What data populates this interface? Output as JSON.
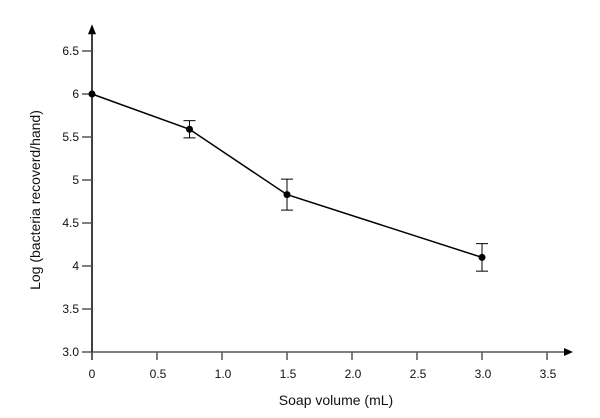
{
  "chart_data": {
    "type": "line",
    "title": "",
    "xlabel": "Soap volume (mL)",
    "ylabel": "Log (bacteria recoverd/hand)",
    "xlim": [
      0,
      3.7
    ],
    "ylim": [
      3.0,
      6.8
    ],
    "x_ticks": [
      0,
      0.5,
      1.0,
      1.5,
      2.0,
      2.5,
      3.0,
      3.5
    ],
    "x_tick_labels": [
      "0",
      "0.5",
      "1.0",
      "1.5",
      "2.0",
      "2.5",
      "3.0",
      "3.5"
    ],
    "y_ticks": [
      3.0,
      3.5,
      4,
      4.5,
      5,
      5.5,
      6,
      6.5
    ],
    "y_tick_labels": [
      "3.0",
      "3.5",
      "4",
      "4.5",
      "5",
      "5.5",
      "6",
      "6.5"
    ],
    "grid": false,
    "series": [
      {
        "x": [
          0,
          0.75,
          1.5,
          3.0
        ],
        "y": [
          6.0,
          5.59,
          4.83,
          4.1
        ],
        "error": [
          0,
          0.1,
          0.18,
          0.16
        ],
        "color": "#000000"
      }
    ]
  }
}
